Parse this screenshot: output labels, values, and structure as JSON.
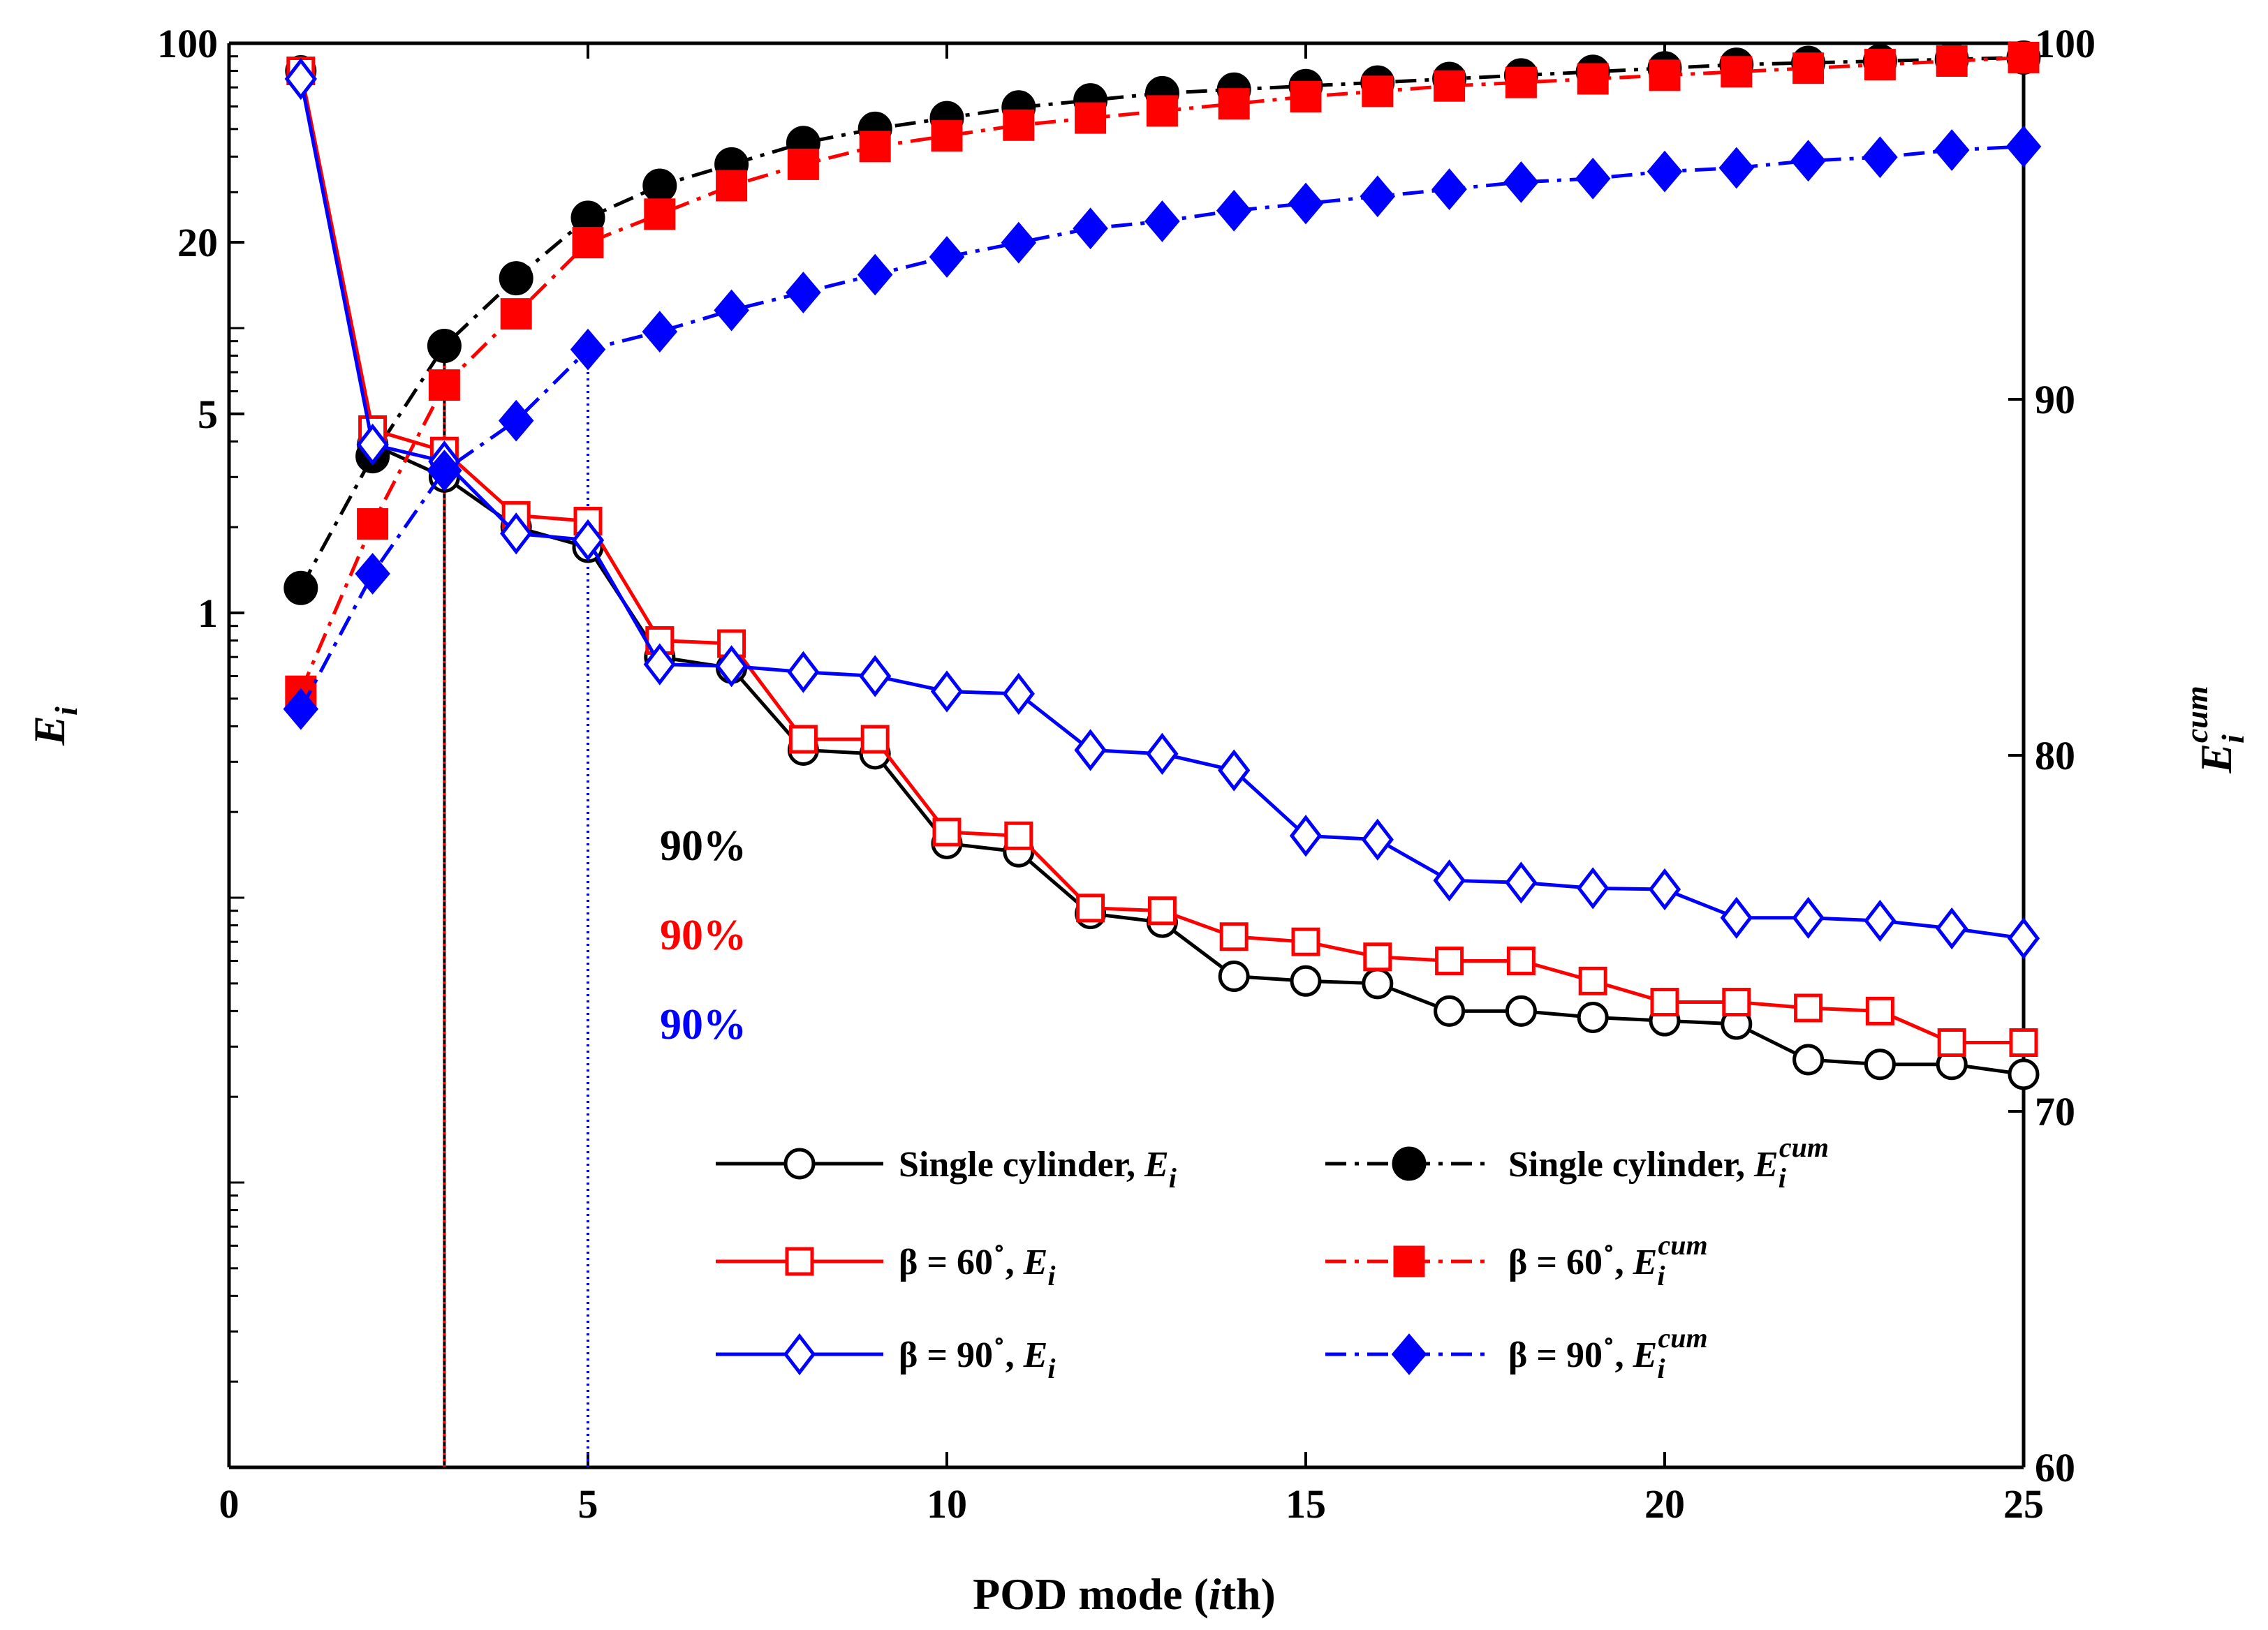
{
  "chart_data": {
    "type": "line",
    "xlabel": "POD mode (ith)",
    "ylabel_left": "E_i",
    "ylabel_right": "E_i^cum",
    "x_ticks": [
      "0",
      "5",
      "10",
      "15",
      "20",
      "25"
    ],
    "left_y_ticks": [
      "100",
      "20",
      "5",
      "1"
    ],
    "right_y_ticks": [
      "100",
      "90",
      "80",
      "70",
      "60"
    ],
    "xlim": [
      0,
      25
    ],
    "left_ylim": [
      0.001,
      100
    ],
    "left_yscale": "log",
    "right_ylim": [
      60,
      100
    ],
    "grid": false,
    "legend_placement": "bottom-right",
    "x": [
      1,
      2,
      3,
      4,
      5,
      6,
      7,
      8,
      9,
      10,
      11,
      12,
      13,
      14,
      15,
      16,
      17,
      18,
      19,
      20,
      21,
      22,
      23,
      24,
      25
    ],
    "series": [
      {
        "name": "Single cylinder, E_i",
        "axis": "left",
        "style": "solid",
        "marker": "circle-open",
        "color": "#000000",
        "values": [
          80,
          3.9,
          3.0,
          2.0,
          1.7,
          0.7,
          0.64,
          0.33,
          0.32,
          0.155,
          0.145,
          0.088,
          0.082,
          0.053,
          0.051,
          0.05,
          0.04,
          0.04,
          0.038,
          0.037,
          0.036,
          0.027,
          0.026,
          0.026,
          0.024
        ]
      },
      {
        "name": "Single cylinder, E_i^cum",
        "axis": "right",
        "style": "dashdot",
        "marker": "circle-filled",
        "color": "#000000",
        "values": [
          84.7,
          88.4,
          91.5,
          93.4,
          95.1,
          96.0,
          96.6,
          97.2,
          97.6,
          97.9,
          98.2,
          98.4,
          98.6,
          98.7,
          98.8,
          98.9,
          99.0,
          99.1,
          99.2,
          99.3,
          99.4,
          99.45,
          99.5,
          99.55,
          99.6
        ]
      },
      {
        "name": "β = 60°, E_i",
        "axis": "left",
        "style": "solid",
        "marker": "square-open",
        "color": "#ff0000",
        "values": [
          80,
          4.4,
          3.7,
          2.2,
          2.1,
          0.8,
          0.78,
          0.36,
          0.36,
          0.17,
          0.165,
          0.092,
          0.09,
          0.073,
          0.07,
          0.062,
          0.06,
          0.06,
          0.051,
          0.043,
          0.043,
          0.041,
          0.04,
          0.031,
          0.031
        ]
      },
      {
        "name": "β = 60°, E_i^cum",
        "axis": "right",
        "style": "dashdot",
        "marker": "square-filled",
        "color": "#ff0000",
        "values": [
          81.8,
          86.5,
          90.4,
          92.4,
          94.4,
          95.2,
          96.0,
          96.6,
          97.1,
          97.4,
          97.7,
          97.9,
          98.1,
          98.3,
          98.5,
          98.65,
          98.8,
          98.9,
          99.0,
          99.1,
          99.2,
          99.3,
          99.4,
          99.5,
          99.6
        ]
      },
      {
        "name": "β = 90°, E_i",
        "axis": "left",
        "style": "solid",
        "marker": "diamond-open",
        "color": "#0000ff",
        "values": [
          75,
          3.9,
          3.4,
          1.9,
          1.8,
          0.66,
          0.65,
          0.62,
          0.6,
          0.53,
          0.52,
          0.33,
          0.32,
          0.28,
          0.165,
          0.16,
          0.115,
          0.113,
          0.108,
          0.107,
          0.085,
          0.085,
          0.083,
          0.078,
          0.072
        ]
      },
      {
        "name": "β = 90°, E_i^cum",
        "axis": "right",
        "style": "dashdot",
        "marker": "diamond-filled",
        "color": "#0000ff",
        "values": [
          81.3,
          85.1,
          88.0,
          89.4,
          91.4,
          91.9,
          92.5,
          93.0,
          93.5,
          94.0,
          94.4,
          94.8,
          95.0,
          95.3,
          95.5,
          95.7,
          95.9,
          96.1,
          96.2,
          96.4,
          96.5,
          96.7,
          96.8,
          97.0,
          97.1
        ]
      }
    ],
    "vertical_markers": [
      {
        "x": 3,
        "color": "#000000",
        "style": "solid"
      },
      {
        "x": 3,
        "color": "#ff0000",
        "style": "dotted"
      },
      {
        "x": 5,
        "color": "#0000ff",
        "style": "dotted"
      }
    ],
    "annotations": [
      {
        "text": "90%",
        "color": "#000000"
      },
      {
        "text": "90%",
        "color": "#ff0000"
      },
      {
        "text": "90%",
        "color": "#0000ff"
      }
    ],
    "legend_entries": [
      {
        "base": "Single cylinder, ",
        "sym": "E",
        "sub": "i",
        "sup": ""
      },
      {
        "base": "Single cylinder, ",
        "sym": "E",
        "sub": "i",
        "sup": "cum"
      },
      {
        "base": "β = 60",
        "deg": "∘",
        "comma": ", ",
        "sym": "E",
        "sub": "i",
        "sup": ""
      },
      {
        "base": "β = 60",
        "deg": "∘",
        "comma": ", ",
        "sym": "E",
        "sub": "i",
        "sup": "cum"
      },
      {
        "base": "β = 90",
        "deg": "∘",
        "comma": ", ",
        "sym": "E",
        "sub": "i",
        "sup": ""
      },
      {
        "base": "β = 90",
        "deg": "∘",
        "comma": ", ",
        "sym": "E",
        "sub": "i",
        "sup": "cum"
      }
    ]
  }
}
